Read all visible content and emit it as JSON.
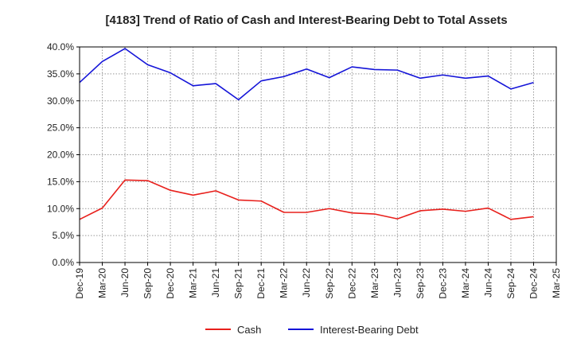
{
  "chart_data": {
    "type": "line",
    "title": "[4183]  Trend of Ratio of Cash and Interest-Bearing Debt to Total Assets",
    "xlabel": "",
    "ylabel": "",
    "ylim": [
      0,
      40
    ],
    "yticks": [
      "0.0%",
      "5.0%",
      "10.0%",
      "15.0%",
      "20.0%",
      "25.0%",
      "30.0%",
      "35.0%",
      "40.0%"
    ],
    "categories": [
      "Dec-19",
      "Mar-20",
      "Jun-20",
      "Sep-20",
      "Dec-20",
      "Mar-21",
      "Jun-21",
      "Sep-21",
      "Dec-21",
      "Mar-22",
      "Jun-22",
      "Sep-22",
      "Dec-22",
      "Mar-23",
      "Jun-23",
      "Sep-23",
      "Dec-23",
      "Mar-24",
      "Jun-24",
      "Sep-24",
      "Dec-24",
      "Mar-25"
    ],
    "grid": true,
    "legend_position": "bottom",
    "series": [
      {
        "name": "Cash",
        "color": "#e8201c",
        "values": [
          8.0,
          10.1,
          15.3,
          15.2,
          13.4,
          12.5,
          13.3,
          11.6,
          11.4,
          9.3,
          9.3,
          10.0,
          9.2,
          9.0,
          8.1,
          9.6,
          9.9,
          9.5,
          10.1,
          8.0,
          8.5,
          null
        ]
      },
      {
        "name": "Interest-Bearing Debt",
        "color": "#1414d8",
        "values": [
          33.4,
          37.3,
          39.7,
          36.7,
          35.2,
          32.8,
          33.2,
          30.2,
          33.7,
          34.5,
          35.9,
          34.3,
          36.3,
          35.8,
          35.7,
          34.2,
          34.8,
          34.2,
          34.6,
          32.2,
          33.4,
          null
        ]
      }
    ]
  }
}
